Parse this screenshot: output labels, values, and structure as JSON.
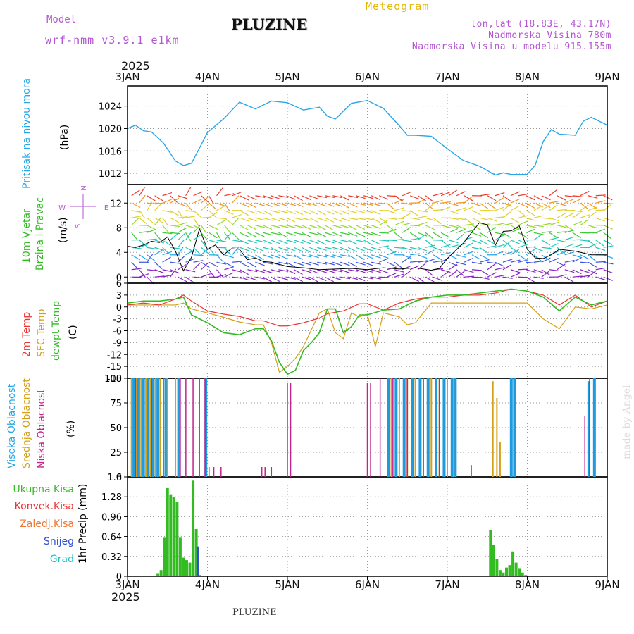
{
  "header": {
    "model_label": "Model",
    "model_name": "wrf-nmm_v3.9.1 e1km",
    "station": "PLUZINE",
    "meteogram": "Meteogram",
    "lonlat": "lon,lat (18.83E, 43.17N)",
    "elevation": "Nadmorska Visina 780m",
    "model_elevation": "Nadmorska Visina u modelu 915.155m"
  },
  "footer": {
    "station": "PLUZINE",
    "credit": "made by Angel"
  },
  "time_axis": {
    "year": "2025",
    "labels": [
      "3JAN",
      "4JAN",
      "5JAN",
      "6JAN",
      "7JAN",
      "8JAN",
      "9JAN"
    ]
  },
  "colors": {
    "pressure": "#2aa7e6",
    "temp2m": "#ee3333",
    "sfc": "#d4a017",
    "dewpt": "#33bb22",
    "high": "#1e9be0",
    "mid": "#d4a017",
    "low": "#c2228a",
    "total_precip": "#33bb22",
    "snow": "#3050d0",
    "grad": "#22c0c0",
    "wind_speed": "#000000"
  },
  "chart_data": [
    {
      "type": "line",
      "title": "",
      "ylabel_left": "Pritisak na nivou mora",
      "ylabel": "(hPa)",
      "ylim": [
        1010,
        1027.6
      ],
      "yticks": [
        1012,
        1016,
        1020,
        1024
      ],
      "grid": true,
      "series": [
        {
          "name": "Pritisak na nivou mora",
          "x": [
            0,
            0.1,
            0.2,
            0.3,
            0.45,
            0.6,
            0.7,
            0.8,
            0.9,
            1.0,
            1.2,
            1.4,
            1.6,
            1.7,
            1.8,
            2.0,
            2.2,
            2.4,
            2.5,
            2.6,
            2.8,
            3.0,
            3.2,
            3.4,
            3.5,
            3.6,
            3.8,
            4.0,
            4.2,
            4.4,
            4.6,
            4.7,
            4.8,
            5.0,
            5.1,
            5.2,
            5.3,
            5.4,
            5.6,
            5.7,
            5.8,
            6.0
          ],
          "values": [
            1020,
            1020.6,
            1019.6,
            1019.4,
            1017.4,
            1014.2,
            1013.4,
            1013.8,
            1016.5,
            1019.3,
            1021.7,
            1024.7,
            1023.5,
            1024.2,
            1024.9,
            1024.6,
            1023.3,
            1023.8,
            1022.2,
            1021.7,
            1024.5,
            1025.0,
            1023.6,
            1020.5,
            1018.8,
            1018.8,
            1018.6,
            1016.4,
            1014.3,
            1013.3,
            1011.7,
            1012.1,
            1011.8,
            1011.8,
            1013.5,
            1017.7,
            1019.8,
            1019.0,
            1018.8,
            1021.3,
            1022.0,
            1020.6
          ]
        }
      ]
    },
    {
      "type": "line",
      "title": "",
      "ylabel_left": [
        "10m Vjetar",
        "Brzina i Pravac"
      ],
      "ylabel": "(m/s)",
      "ylim": [
        -1,
        15
      ],
      "yticks": [
        0,
        4,
        8,
        12
      ],
      "compass": {
        "north": "N",
        "west": "W",
        "east": "E",
        "south": "S"
      },
      "series": [
        {
          "name": "10m Vjetar",
          "x": [
            0,
            0.1,
            0.2,
            0.3,
            0.4,
            0.5,
            0.6,
            0.7,
            0.8,
            0.9,
            1.0,
            1.1,
            1.2,
            1.3,
            1.4,
            1.5,
            1.6,
            1.7,
            1.8,
            2.0,
            2.2,
            2.4,
            2.6,
            2.8,
            3.0,
            3.2,
            3.4,
            3.6,
            3.8,
            3.9,
            4.0,
            4.2,
            4.4,
            4.5,
            4.6,
            4.7,
            4.8,
            4.9,
            5.0,
            5.1,
            5.2,
            5.3,
            5.4,
            5.6,
            5.8,
            6.0
          ],
          "values": [
            5,
            4.8,
            5.2,
            5.8,
            5.6,
            6.5,
            4.2,
            1,
            3.2,
            7.8,
            4.5,
            5.2,
            3.6,
            4.6,
            4.5,
            2.8,
            3.1,
            2.5,
            2.4,
            1.7,
            1.5,
            1.2,
            1.3,
            1.4,
            1.2,
            1.5,
            1.3,
            1.5,
            1.1,
            1.4,
            3,
            5.5,
            8.8,
            8.5,
            5.2,
            7.4,
            7.5,
            8.3,
            4.5,
            3.1,
            3.0,
            3.6,
            4.5,
            4.2,
            3.6,
            3.6
          ]
        }
      ]
    },
    {
      "type": "line",
      "title": "",
      "ylabel_left": [
        "2m Temp",
        "SFC Temp",
        "dewpt Temp"
      ],
      "ylabel": "(C)",
      "ylim": [
        -18,
        6
      ],
      "yticks": [
        -18,
        -15,
        -12,
        -9,
        -6,
        -3,
        0,
        3,
        6
      ],
      "series": [
        {
          "name": "2m Temp",
          "x": [
            0,
            0.2,
            0.4,
            0.6,
            0.7,
            0.8,
            1.0,
            1.2,
            1.4,
            1.6,
            1.7,
            1.9,
            2.0,
            2.2,
            2.4,
            2.5,
            2.7,
            2.9,
            3.0,
            3.2,
            3.4,
            3.6,
            3.8,
            4.0,
            4.2,
            4.4,
            4.6,
            4.8,
            5.0,
            5.2,
            5.4,
            5.6,
            5.8,
            6.0
          ],
          "values": [
            0.5,
            1,
            0.5,
            2,
            3,
            1.5,
            -1,
            -1.8,
            -2.4,
            -3.5,
            -3.5,
            -4.8,
            -4.8,
            -4,
            -2.8,
            -1.7,
            -1,
            0.8,
            0.8,
            -0.8,
            1,
            2,
            2.5,
            2.5,
            3,
            3,
            3.5,
            4.5,
            4,
            3,
            0.5,
            3,
            0,
            1.5
          ]
        },
        {
          "name": "SFC Temp",
          "x": [
            0,
            0.2,
            0.4,
            0.6,
            0.7,
            0.8,
            1.0,
            1.2,
            1.4,
            1.6,
            1.7,
            1.8,
            1.9,
            2.0,
            2.1,
            2.2,
            2.4,
            2.5,
            2.6,
            2.7,
            2.8,
            2.9,
            3.0,
            3.1,
            3.2,
            3.3,
            3.4,
            3.5,
            3.6,
            3.8,
            4.0,
            4.2,
            4.4,
            4.6,
            4.8,
            5.0,
            5.2,
            5.4,
            5.6,
            5.8,
            6.0
          ],
          "values": [
            0.5,
            0.5,
            0.5,
            0.5,
            1.0,
            -0.5,
            -1.5,
            -2.6,
            -3.8,
            -4.5,
            -4.5,
            -9,
            -16.5,
            -15,
            -13,
            -10,
            -1.5,
            -0.5,
            -6.5,
            -8,
            -1.5,
            -2.5,
            -1.8,
            -10,
            -1.5,
            -2,
            -2.5,
            -4.5,
            -4,
            1,
            1,
            1,
            1,
            1,
            1,
            1,
            -3,
            -5.5,
            0,
            -0.5,
            0.5
          ]
        },
        {
          "name": "dewpt Temp",
          "x": [
            0,
            0.2,
            0.4,
            0.6,
            0.7,
            0.8,
            1.0,
            1.2,
            1.4,
            1.6,
            1.7,
            1.8,
            1.9,
            2.0,
            2.1,
            2.2,
            2.3,
            2.4,
            2.5,
            2.6,
            2.7,
            2.8,
            2.9,
            3.0,
            3.2,
            3.4,
            3.6,
            3.8,
            4.0,
            4.2,
            4.4,
            4.6,
            4.8,
            5.0,
            5.2,
            5.4,
            5.6,
            5.8,
            6.0
          ],
          "values": [
            1,
            1.5,
            1.5,
            2,
            2.5,
            -2,
            -4,
            -6.5,
            -7,
            -5.5,
            -5.5,
            -8.5,
            -14,
            -17,
            -16,
            -11,
            -9,
            -6.5,
            -0.5,
            -0.5,
            -6.5,
            -5,
            -2,
            -2,
            -0.8,
            -0.5,
            1.5,
            2.5,
            3,
            3,
            3.5,
            4,
            4.5,
            4,
            2.5,
            -1,
            2.5,
            0.5,
            1.5
          ]
        }
      ]
    },
    {
      "type": "bar",
      "title": "",
      "ylabel_left": [
        "Visoka Oblacnost",
        "Srednja Oblacnost",
        "Niska Oblacnost"
      ],
      "ylabel": "(%)",
      "ylim": [
        0,
        100
      ],
      "yticks": [
        0,
        25,
        50,
        75,
        100
      ],
      "series": [
        {
          "name": "Visoka Oblacnost",
          "x": [
            0.08,
            0.14,
            0.2,
            0.26,
            0.32,
            0.38,
            0.48,
            0.64,
            0.98,
            3.26,
            3.36,
            3.46,
            3.56,
            3.66,
            3.76,
            3.86,
            3.96,
            4.06,
            4.1,
            4.8,
            4.84,
            5.77,
            5.84
          ],
          "values": [
            100,
            100,
            100,
            100,
            100,
            100,
            100,
            100,
            100,
            100,
            100,
            100,
            100,
            100,
            100,
            100,
            100,
            100,
            100,
            100,
            100,
            97,
            100
          ]
        },
        {
          "name": "Srednja Oblacnost",
          "x": [
            0.05,
            0.11,
            0.17,
            0.23,
            0.29,
            0.35,
            0.41,
            0.5,
            0.6,
            3.3,
            3.4,
            3.5,
            3.6,
            3.7,
            3.8,
            3.9,
            4.0,
            4.08,
            4.57,
            4.62,
            4.66
          ],
          "values": [
            100,
            100,
            100,
            100,
            100,
            100,
            100,
            100,
            100,
            100,
            100,
            100,
            100,
            100,
            100,
            100,
            100,
            100,
            97,
            80,
            35
          ]
        },
        {
          "name": "Niska Oblacnost",
          "x": [
            0.1,
            0.3,
            0.45,
            0.66,
            0.73,
            0.82,
            0.9,
            0.97,
            1.02,
            1.08,
            1.17,
            1.68,
            1.72,
            1.8,
            2.0,
            2.04,
            3.0,
            3.04,
            3.16,
            3.32,
            3.5,
            3.7,
            3.9,
            4.3,
            5.72,
            5.78
          ],
          "values": [
            100,
            100,
            100,
            100,
            100,
            100,
            100,
            100,
            10,
            10,
            10,
            10,
            10,
            10,
            95,
            95,
            95,
            95,
            100,
            100,
            100,
            100,
            100,
            12,
            62,
            100
          ]
        }
      ]
    },
    {
      "type": "bar",
      "title": "",
      "ylabel_left": [
        "Ukupna Kisa",
        "Konvek.Kisa",
        "Zaledj.Kisa",
        "Snijeg",
        "Grad"
      ],
      "ylabel": "1hr Precip (mm)",
      "ylim": [
        0,
        1.6
      ],
      "yticks": [
        "0",
        "0.32",
        "0.64",
        "0.96",
        "1.28",
        "1.6"
      ],
      "series": [
        {
          "name": "Ukupna Kisa",
          "x": [
            0.38,
            0.42,
            0.46,
            0.5,
            0.54,
            0.58,
            0.62,
            0.66,
            0.7,
            0.74,
            0.78,
            0.82,
            0.86,
            0.9,
            4.54,
            4.58,
            4.62,
            4.66,
            4.7,
            4.74,
            4.78,
            4.82,
            4.86,
            4.9,
            4.94,
            4.98,
            5.02,
            5.06
          ],
          "values": [
            0.04,
            0.1,
            0.62,
            1.42,
            1.32,
            1.28,
            1.2,
            0.62,
            0.3,
            0.26,
            0.22,
            1.54,
            0.76,
            0.02,
            0.74,
            0.5,
            0.28,
            0.1,
            0.06,
            0.14,
            0.18,
            0.4,
            0.22,
            0.12,
            0.06,
            0.02,
            0.01,
            0.01
          ]
        },
        {
          "name": "Snijeg",
          "x": [
            0.88
          ],
          "values": [
            0.48
          ]
        }
      ]
    }
  ]
}
